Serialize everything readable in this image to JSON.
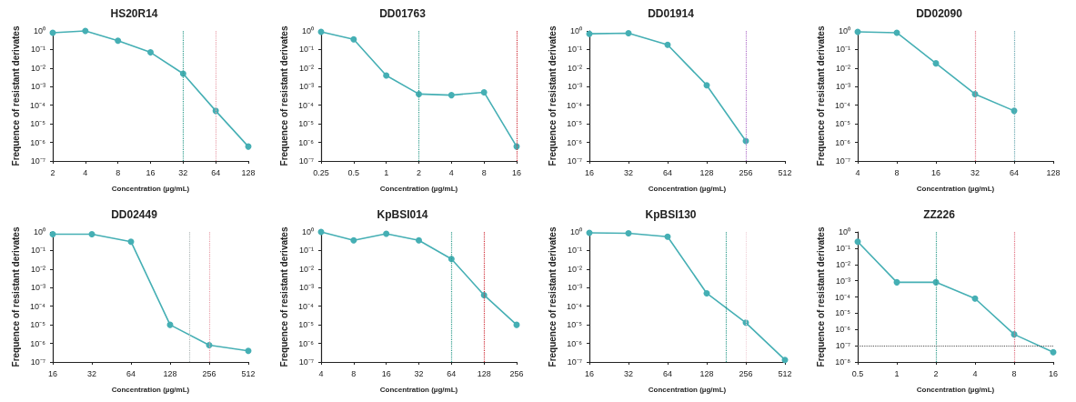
{
  "chart_data": [
    {
      "type": "line",
      "title": "HS20R14",
      "xlabel": "Concentration (µg/mL)",
      "ylabel": "Frequence of resistant derivates",
      "log": "xy",
      "marker": "circle",
      "x": [
        2,
        4,
        8,
        16,
        32,
        64,
        128
      ],
      "series": [
        {
          "color": "#45afb4",
          "values": [
            0.8,
            1,
            0.3,
            0.07,
            0.005,
            5e-05,
            6e-07
          ]
        }
      ],
      "xlim": [
        2,
        128
      ],
      "xticks": [
        2,
        4,
        8,
        16,
        32,
        64,
        128
      ],
      "ylim": [
        1e-07,
        1
      ],
      "yticks": [
        {
          "value": 1e-07,
          "label": "10⁻⁷"
        },
        {
          "value": 1e-06,
          "label": "10⁻⁶"
        },
        {
          "value": 1e-05,
          "label": "10⁻⁵"
        },
        {
          "value": 0.0001,
          "label": "10⁻⁴"
        },
        {
          "value": 0.001,
          "label": "10⁻³"
        },
        {
          "value": 0.01,
          "label": "10⁻²"
        },
        {
          "value": 0.1,
          "label": "10⁻¹"
        },
        {
          "value": 1,
          "label": "10⁰"
        }
      ],
      "ref_lines": [
        {
          "axis": "x",
          "value": 32,
          "color": "#2e9c8c",
          "line_style": "dotted"
        },
        {
          "axis": "x",
          "value": 64,
          "color": "#e8a0aa",
          "line_style": "dotted"
        }
      ]
    },
    {
      "type": "line",
      "title": "DD01763",
      "xlabel": "Concentration (µg/mL)",
      "ylabel": "Frequence of resistant derivates",
      "log": "xy",
      "marker": "circle",
      "x": [
        0.25,
        0.5,
        1,
        2,
        4,
        8,
        16
      ],
      "series": [
        {
          "color": "#45afb4",
          "values": [
            0.9,
            0.35,
            0.004,
            0.0004,
            0.00035,
            0.0005,
            6e-07
          ]
        }
      ],
      "xlim": [
        0.25,
        16
      ],
      "xticks": [
        0.25,
        0.5,
        1,
        2,
        4,
        8,
        16
      ],
      "ylim": [
        1e-07,
        1
      ],
      "yticks": [
        {
          "value": 1e-07,
          "label": "10⁻⁷"
        },
        {
          "value": 1e-06,
          "label": "10⁻⁶"
        },
        {
          "value": 1e-05,
          "label": "10⁻⁵"
        },
        {
          "value": 0.0001,
          "label": "10⁻⁴"
        },
        {
          "value": 0.001,
          "label": "10⁻³"
        },
        {
          "value": 0.01,
          "label": "10⁻²"
        },
        {
          "value": 0.1,
          "label": "10⁻¹"
        },
        {
          "value": 1,
          "label": "10⁰"
        }
      ],
      "ref_lines": [
        {
          "axis": "x",
          "value": 2,
          "color": "#2e9c8c",
          "line_style": "dotted"
        },
        {
          "axis": "x",
          "value": 16,
          "color": "#d0303a",
          "line_style": "dotted"
        }
      ]
    },
    {
      "type": "line",
      "title": "DD01914",
      "xlabel": "Concentration (µg/mL)",
      "ylabel": "Frequence of resistant derivates",
      "log": "xy",
      "marker": "circle",
      "x": [
        16,
        32,
        64,
        128,
        256
      ],
      "series": [
        {
          "color": "#45afb4",
          "values": [
            0.7,
            0.75,
            0.18,
            0.0012,
            1.2e-06
          ]
        }
      ],
      "xlim": [
        16,
        512
      ],
      "xticks": [
        16,
        32,
        64,
        128,
        256,
        512
      ],
      "ylim": [
        1e-07,
        1
      ],
      "yticks": [
        {
          "value": 1e-07,
          "label": "10⁻⁷"
        },
        {
          "value": 1e-06,
          "label": "10⁻⁶"
        },
        {
          "value": 1e-05,
          "label": "10⁻⁵"
        },
        {
          "value": 0.0001,
          "label": "10⁻⁴"
        },
        {
          "value": 0.001,
          "label": "10⁻³"
        },
        {
          "value": 0.01,
          "label": "10⁻²"
        },
        {
          "value": 0.1,
          "label": "10⁻¹"
        },
        {
          "value": 1,
          "label": "10⁰"
        }
      ],
      "ref_lines": [
        {
          "axis": "x",
          "value": 256,
          "color": "#b070c8",
          "line_style": "dotted"
        }
      ]
    },
    {
      "type": "line",
      "title": "DD02090",
      "xlabel": "Concentration (µg/mL)",
      "ylabel": "Frequence of resistant derivates",
      "log": "xy",
      "marker": "circle",
      "x": [
        4,
        8,
        16,
        32,
        64
      ],
      "series": [
        {
          "color": "#45afb4",
          "values": [
            0.9,
            0.8,
            0.018,
            0.0004,
            5e-05
          ]
        }
      ],
      "xlim": [
        4,
        128
      ],
      "xticks": [
        4,
        8,
        16,
        32,
        64,
        128
      ],
      "ylim": [
        1e-07,
        1
      ],
      "yticks": [
        {
          "value": 1e-07,
          "label": "10⁻⁷"
        },
        {
          "value": 1e-06,
          "label": "10⁻⁶"
        },
        {
          "value": 1e-05,
          "label": "10⁻⁵"
        },
        {
          "value": 0.0001,
          "label": "10⁻⁴"
        },
        {
          "value": 0.001,
          "label": "10⁻³"
        },
        {
          "value": 0.01,
          "label": "10⁻²"
        },
        {
          "value": 0.1,
          "label": "10⁻¹"
        },
        {
          "value": 1,
          "label": "10⁰"
        }
      ],
      "ref_lines": [
        {
          "axis": "x",
          "value": 32,
          "color": "#e07080",
          "line_style": "dotted"
        },
        {
          "axis": "x",
          "value": 64,
          "color": "#6aa8b0",
          "line_style": "dotted"
        }
      ]
    },
    {
      "type": "line",
      "title": "DD02449",
      "xlabel": "Concentration (µg/mL)",
      "ylabel": "Frequence of resistant derivates",
      "log": "xy",
      "marker": "circle",
      "x": [
        16,
        32,
        64,
        128,
        256,
        512
      ],
      "series": [
        {
          "color": "#45afb4",
          "values": [
            0.75,
            0.75,
            0.3,
            1e-05,
            8e-07,
            4e-07
          ]
        }
      ],
      "xlim": [
        16,
        512
      ],
      "xticks": [
        16,
        32,
        64,
        128,
        256,
        512
      ],
      "ylim": [
        1e-07,
        1
      ],
      "yticks": [
        {
          "value": 1e-07,
          "label": "10⁻⁷"
        },
        {
          "value": 1e-06,
          "label": "10⁻⁶"
        },
        {
          "value": 1e-05,
          "label": "10⁻⁵"
        },
        {
          "value": 0.0001,
          "label": "10⁻⁴"
        },
        {
          "value": 0.001,
          "label": "10⁻³"
        },
        {
          "value": 0.01,
          "label": "10⁻²"
        },
        {
          "value": 0.1,
          "label": "10⁻¹"
        },
        {
          "value": 1,
          "label": "10⁰"
        }
      ],
      "ref_lines": [
        {
          "axis": "x",
          "value": 180,
          "color": "#b0b8b8",
          "line_style": "dotted"
        },
        {
          "axis": "x",
          "value": 256,
          "color": "#e8a0aa",
          "line_style": "dotted"
        }
      ]
    },
    {
      "type": "line",
      "title": "KpBSI014",
      "xlabel": "Concentration (µg/mL)",
      "ylabel": "Frequence of resistant derivates",
      "log": "xy",
      "marker": "circle",
      "x": [
        4,
        8,
        16,
        32,
        64,
        128,
        256
      ],
      "series": [
        {
          "color": "#45afb4",
          "values": [
            1,
            0.35,
            0.8,
            0.35,
            0.035,
            0.0004,
            1e-05
          ]
        }
      ],
      "xlim": [
        4,
        256
      ],
      "xticks": [
        4,
        8,
        16,
        32,
        64,
        128,
        256
      ],
      "ylim": [
        1e-07,
        1
      ],
      "yticks": [
        {
          "value": 1e-07,
          "label": "10⁻⁷"
        },
        {
          "value": 1e-06,
          "label": "10⁻⁶"
        },
        {
          "value": 1e-05,
          "label": "10⁻⁵"
        },
        {
          "value": 0.0001,
          "label": "10⁻⁴"
        },
        {
          "value": 0.001,
          "label": "10⁻³"
        },
        {
          "value": 0.01,
          "label": "10⁻²"
        },
        {
          "value": 0.1,
          "label": "10⁻¹"
        },
        {
          "value": 1,
          "label": "10⁰"
        }
      ],
      "ref_lines": [
        {
          "axis": "x",
          "value": 64,
          "color": "#2e9c8c",
          "line_style": "dotted"
        },
        {
          "axis": "x",
          "value": 128,
          "color": "#d0303a",
          "line_style": "dotted"
        }
      ]
    },
    {
      "type": "line",
      "title": "KpBSI130",
      "xlabel": "Concentration (µg/mL)",
      "ylabel": "Frequence of resistant derivates",
      "log": "xy",
      "marker": "circle",
      "x": [
        16,
        32,
        64,
        128,
        256,
        512
      ],
      "series": [
        {
          "color": "#45afb4",
          "values": [
            0.9,
            0.85,
            0.55,
            0.0005,
            1.3e-05,
            1.3e-07
          ]
        }
      ],
      "xlim": [
        16,
        512
      ],
      "xticks": [
        16,
        32,
        64,
        128,
        256,
        512
      ],
      "ylim": [
        1e-07,
        1
      ],
      "yticks": [
        {
          "value": 1e-07,
          "label": "10⁻⁷"
        },
        {
          "value": 1e-06,
          "label": "10⁻⁶"
        },
        {
          "value": 1e-05,
          "label": "10⁻⁵"
        },
        {
          "value": 0.0001,
          "label": "10⁻⁴"
        },
        {
          "value": 0.001,
          "label": "10⁻³"
        },
        {
          "value": 0.01,
          "label": "10⁻²"
        },
        {
          "value": 0.1,
          "label": "10⁻¹"
        },
        {
          "value": 1,
          "label": "10⁰"
        }
      ],
      "ref_lines": [
        {
          "axis": "x",
          "value": 180,
          "color": "#2e9c8c",
          "line_style": "dotted"
        },
        {
          "axis": "x",
          "value": 256,
          "color": "#f0d0d8",
          "line_style": "dotted"
        }
      ]
    },
    {
      "type": "line",
      "title": "ZZ226",
      "xlabel": "Concentration (µg/mL)",
      "ylabel": "Frequence of resistant derivates",
      "log": "xy",
      "marker": "circle",
      "x": [
        0.5,
        1,
        2,
        4,
        8,
        16
      ],
      "series": [
        {
          "color": "#45afb4",
          "values": [
            0.25,
            0.0008,
            0.0008,
            8e-05,
            5e-07,
            4e-08
          ]
        }
      ],
      "xlim": [
        0.5,
        16
      ],
      "xticks": [
        0.5,
        1,
        2,
        4,
        8,
        16
      ],
      "ylim": [
        1e-08,
        1
      ],
      "yticks": [
        {
          "value": 1e-08,
          "label": "10⁻⁸"
        },
        {
          "value": 1e-07,
          "label": "10⁻⁷"
        },
        {
          "value": 1e-06,
          "label": "10⁻⁶"
        },
        {
          "value": 1e-05,
          "label": "10⁻⁵"
        },
        {
          "value": 0.0001,
          "label": "10⁻⁴"
        },
        {
          "value": 0.001,
          "label": "10⁻³"
        },
        {
          "value": 0.01,
          "label": "10⁻²"
        },
        {
          "value": 0.1,
          "label": "10⁻¹"
        },
        {
          "value": 1,
          "label": "10⁰"
        }
      ],
      "ref_lines": [
        {
          "axis": "x",
          "value": 2,
          "color": "#2e9c8c",
          "line_style": "dotted"
        },
        {
          "axis": "x",
          "value": 8,
          "color": "#e07080",
          "line_style": "dotted"
        },
        {
          "axis": "y",
          "value": 1e-07,
          "color": "#555555",
          "line_style": "dotted"
        }
      ]
    }
  ]
}
